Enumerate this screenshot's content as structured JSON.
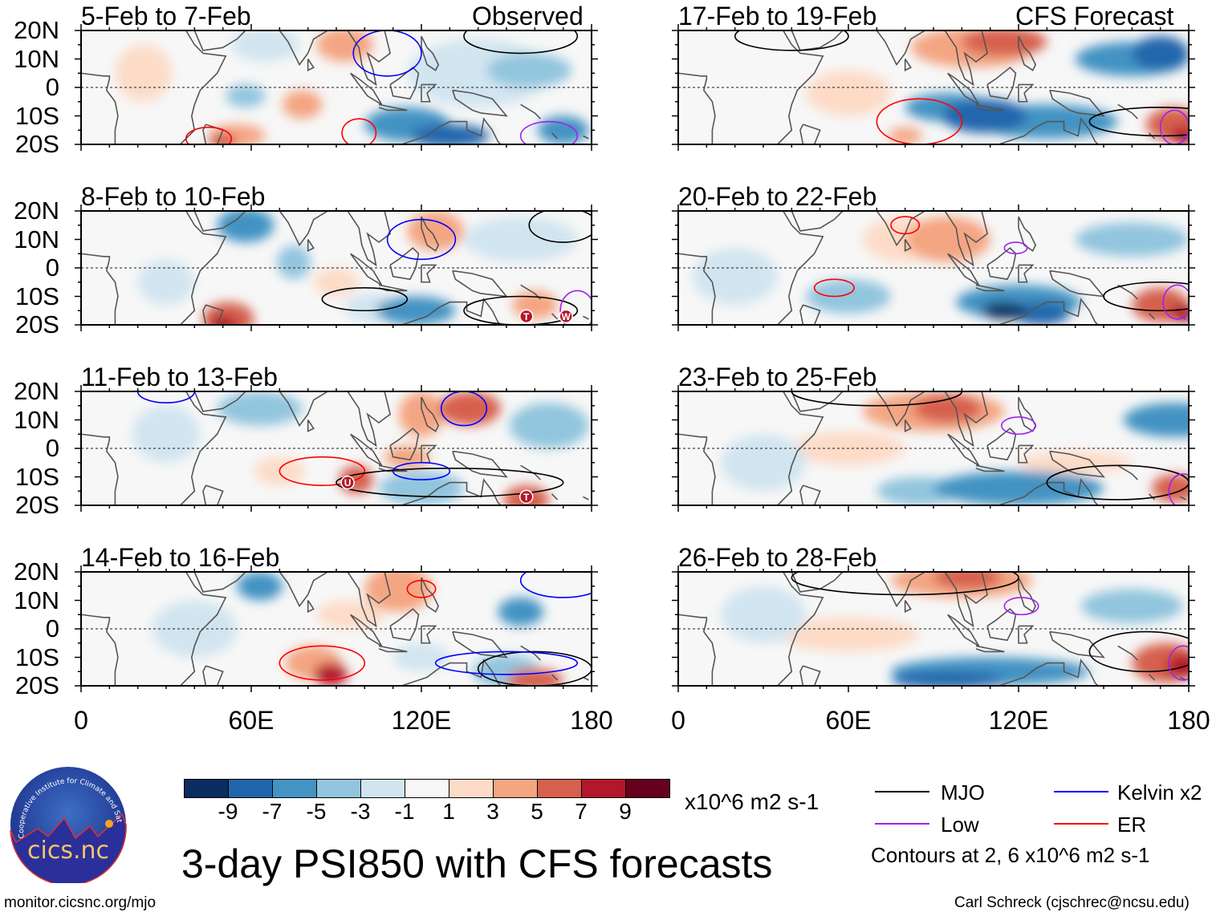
{
  "figure": {
    "title": "3-day PSI850 with CFS forecasts",
    "website": "monitor.cicsnc.org/mjo",
    "credit": "Carl Schreck (cjschrec@ncsu.edu)",
    "logo_text": "cics.nc",
    "logo_ring_text": "Cooperative Institute for Climate and Satellites"
  },
  "columns": {
    "left_label": "Observed",
    "right_label": "CFS Forecast"
  },
  "panels": [
    {
      "title": "5-Feb to 7-Feb",
      "markers": []
    },
    {
      "title": "8-Feb to 10-Feb",
      "markers": [
        "T",
        "W"
      ]
    },
    {
      "title": "11-Feb to 13-Feb",
      "markers": [
        "U",
        "T"
      ]
    },
    {
      "title": "14-Feb to 16-Feb",
      "markers": []
    },
    {
      "title": "17-Feb to 19-Feb",
      "markers": []
    },
    {
      "title": "20-Feb to 22-Feb",
      "markers": []
    },
    {
      "title": "23-Feb to 25-Feb",
      "markers": []
    },
    {
      "title": "26-Feb to 28-Feb",
      "markers": []
    }
  ],
  "axes": {
    "lat_ticks": [
      "20N",
      "10N",
      "0",
      "10S",
      "20S"
    ],
    "lon_ticks": [
      "0",
      "60E",
      "120E",
      "180"
    ]
  },
  "colorbar": {
    "colors": [
      "#0b2d5f",
      "#2166ac",
      "#4393c3",
      "#92c5de",
      "#d1e5f0",
      "#f7f7f7",
      "#fddbc7",
      "#f4a582",
      "#d6604d",
      "#b2182b",
      "#67001f"
    ],
    "labels": [
      "-9",
      "-7",
      "-5",
      "-3",
      "-1",
      "1",
      "3",
      "5",
      "7",
      "9"
    ],
    "units": "x10^6 m2 s-1"
  },
  "legend": {
    "items": [
      {
        "label": "MJO",
        "color": "#000000"
      },
      {
        "label": "Kelvin x2",
        "color": "#0000ff"
      },
      {
        "label": "Low",
        "color": "#a020f0"
      },
      {
        "label": "ER",
        "color": "#ff0000"
      }
    ],
    "note": "Contours at 2, 6 x10^6 m2 s-1"
  }
}
